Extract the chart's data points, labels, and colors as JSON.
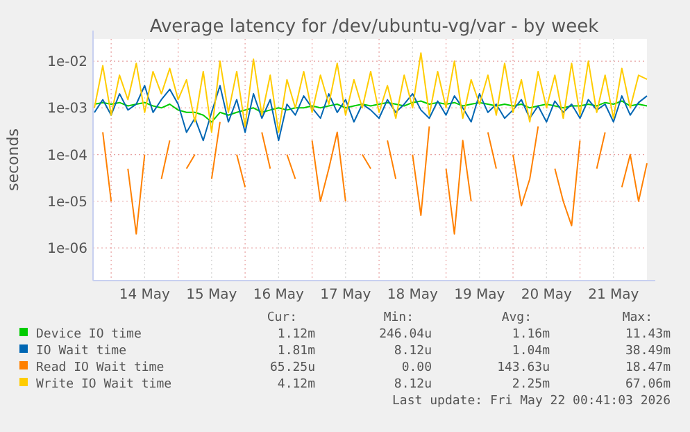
{
  "chart_data": {
    "type": "line",
    "title": "Average latency for /dev/ubuntu-vg/var - by week",
    "ylabel": "seconds",
    "log": "y",
    "grid": true,
    "legend": "bottom",
    "marker": "none",
    "line_style": "solid",
    "xlim": [
      "2026-05-13T17:30",
      "2026-05-22T00:00"
    ],
    "xticks": [
      {
        "value": "2026-05-14T00:00",
        "label": null
      },
      {
        "value": "2026-05-14T12:00",
        "label": "14 May"
      },
      {
        "value": "2026-05-15T00:00",
        "label": null
      },
      {
        "value": "2026-05-15T12:00",
        "label": "15 May"
      },
      {
        "value": "2026-05-16T00:00",
        "label": null
      },
      {
        "value": "2026-05-16T12:00",
        "label": "16 May"
      },
      {
        "value": "2026-05-17T00:00",
        "label": null
      },
      {
        "value": "2026-05-17T12:00",
        "label": "17 May"
      },
      {
        "value": "2026-05-18T00:00",
        "label": null
      },
      {
        "value": "2026-05-18T12:00",
        "label": "18 May"
      },
      {
        "value": "2026-05-19T00:00",
        "label": null
      },
      {
        "value": "2026-05-19T12:00",
        "label": "19 May"
      },
      {
        "value": "2026-05-20T00:00",
        "label": null
      },
      {
        "value": "2026-05-20T12:00",
        "label": "20 May"
      },
      {
        "value": "2026-05-21T00:00",
        "label": null
      },
      {
        "value": "2026-05-21T12:00",
        "label": "21 May"
      }
    ],
    "ylim": [
      2e-07,
      0.03
    ],
    "yticks": [
      {
        "value": 1e-06,
        "label": "1e-06"
      },
      {
        "value": 1e-05,
        "label": "1e-05"
      },
      {
        "value": 0.0001,
        "label": "1e-04"
      },
      {
        "value": 0.001,
        "label": "1e-03"
      },
      {
        "value": 0.01,
        "label": "1e-02"
      }
    ],
    "x": [
      "2026-05-13T18:00",
      "2026-05-13T21:00",
      "2026-05-14T00:00",
      "2026-05-14T03:00",
      "2026-05-14T06:00",
      "2026-05-14T09:00",
      "2026-05-14T12:00",
      "2026-05-14T15:00",
      "2026-05-14T18:00",
      "2026-05-14T21:00",
      "2026-05-15T00:00",
      "2026-05-15T03:00",
      "2026-05-15T06:00",
      "2026-05-15T09:00",
      "2026-05-15T12:00",
      "2026-05-15T15:00",
      "2026-05-15T18:00",
      "2026-05-15T21:00",
      "2026-05-16T00:00",
      "2026-05-16T03:00",
      "2026-05-16T06:00",
      "2026-05-16T09:00",
      "2026-05-16T12:00",
      "2026-05-16T15:00",
      "2026-05-16T18:00",
      "2026-05-16T21:00",
      "2026-05-17T00:00",
      "2026-05-17T03:00",
      "2026-05-17T06:00",
      "2026-05-17T09:00",
      "2026-05-17T12:00",
      "2026-05-17T15:00",
      "2026-05-17T18:00",
      "2026-05-17T21:00",
      "2026-05-18T00:00",
      "2026-05-18T03:00",
      "2026-05-18T06:00",
      "2026-05-18T09:00",
      "2026-05-18T12:00",
      "2026-05-18T15:00",
      "2026-05-18T18:00",
      "2026-05-18T21:00",
      "2026-05-19T00:00",
      "2026-05-19T03:00",
      "2026-05-19T06:00",
      "2026-05-19T09:00",
      "2026-05-19T12:00",
      "2026-05-19T15:00",
      "2026-05-19T18:00",
      "2026-05-19T21:00",
      "2026-05-20T00:00",
      "2026-05-20T03:00",
      "2026-05-20T06:00",
      "2026-05-20T09:00",
      "2026-05-20T12:00",
      "2026-05-20T15:00",
      "2026-05-20T18:00",
      "2026-05-20T21:00",
      "2026-05-21T00:00",
      "2026-05-21T03:00",
      "2026-05-21T06:00",
      "2026-05-21T09:00",
      "2026-05-21T12:00",
      "2026-05-21T15:00",
      "2026-05-21T18:00",
      "2026-05-21T21:00",
      "2026-05-22T00:00"
    ],
    "series": [
      {
        "name": "Device IO time",
        "color": "#00cc00",
        "values": [
          0.0012,
          0.0013,
          0.0012,
          0.0013,
          0.0011,
          0.0012,
          0.0013,
          0.0011,
          0.001,
          0.0012,
          0.0009,
          0.0008,
          0.0008,
          0.0007,
          0.0005,
          0.0008,
          0.0007,
          0.0008,
          0.0009,
          0.001,
          0.0008,
          0.0009,
          0.001,
          0.0009,
          0.001,
          0.001,
          0.0011,
          0.001,
          0.0011,
          0.0012,
          0.001,
          0.0011,
          0.0012,
          0.0011,
          0.0012,
          0.0013,
          0.0012,
          0.0011,
          0.0013,
          0.0014,
          0.0012,
          0.0013,
          0.0012,
          0.0013,
          0.0011,
          0.0012,
          0.0013,
          0.0012,
          0.0011,
          0.0012,
          0.0011,
          0.0012,
          0.001,
          0.0011,
          0.0012,
          0.0011,
          0.001,
          0.0011,
          0.0011,
          0.0012,
          0.0011,
          0.0013,
          0.0012,
          0.0014,
          0.0011,
          0.0012,
          0.0011
        ]
      },
      {
        "name": "IO Wait time",
        "color": "#0066b3",
        "values": [
          0.0008,
          0.0015,
          0.0007,
          0.002,
          0.0009,
          0.0012,
          0.003,
          0.0008,
          0.0015,
          0.0025,
          0.0012,
          0.0003,
          0.0006,
          0.0002,
          0.0008,
          0.003,
          0.0005,
          0.0015,
          0.0003,
          0.002,
          0.0006,
          0.0015,
          0.0002,
          0.0012,
          0.0007,
          0.0018,
          0.001,
          0.0006,
          0.002,
          0.0008,
          0.0015,
          0.0005,
          0.0012,
          0.0009,
          0.0006,
          0.0015,
          0.0008,
          0.0012,
          0.002,
          0.0009,
          0.0006,
          0.0014,
          0.0007,
          0.0018,
          0.001,
          0.0005,
          0.002,
          0.0008,
          0.0012,
          0.0006,
          0.0009,
          0.0015,
          0.0006,
          0.0011,
          0.0005,
          0.0014,
          0.0008,
          0.0012,
          0.0006,
          0.0015,
          0.0009,
          0.0012,
          0.0005,
          0.0018,
          0.0007,
          0.0013,
          0.0018
        ]
      },
      {
        "name": "Read IO Wait time",
        "color": "#ff8000",
        "values": [
          null,
          0.0003,
          1e-05,
          null,
          5e-05,
          2e-06,
          0.0001,
          null,
          3e-05,
          0.0002,
          null,
          5e-05,
          0.0001,
          null,
          3e-05,
          0.0005,
          null,
          0.0001,
          2e-05,
          null,
          0.0003,
          5e-05,
          null,
          0.0001,
          3e-05,
          null,
          0.0002,
          1e-05,
          5e-05,
          0.0003,
          1e-05,
          null,
          0.0001,
          5e-05,
          null,
          0.0002,
          3e-05,
          null,
          0.0001,
          5e-06,
          0.0004,
          null,
          5e-05,
          2e-06,
          0.0002,
          1e-05,
          null,
          0.0003,
          5e-05,
          null,
          0.0001,
          8e-06,
          3e-05,
          0.0004,
          null,
          5e-05,
          1e-05,
          3e-06,
          0.0002,
          null,
          5e-05,
          0.0003,
          null,
          2e-05,
          0.0001,
          1e-05,
          6.5e-05
        ]
      },
      {
        "name": "Write IO Wait time",
        "color": "#ffcc00",
        "values": [
          0.001,
          0.008,
          0.0007,
          0.005,
          0.0015,
          0.009,
          0.0008,
          0.006,
          0.002,
          0.007,
          0.0015,
          0.004,
          0.0005,
          0.006,
          0.0003,
          0.01,
          0.0008,
          0.006,
          0.0004,
          0.011,
          0.0007,
          0.005,
          0.0003,
          0.004,
          0.001,
          0.006,
          0.0008,
          0.005,
          0.0012,
          0.009,
          0.0007,
          0.004,
          0.001,
          0.006,
          0.0008,
          0.003,
          0.0006,
          0.005,
          0.001,
          0.015,
          0.0007,
          0.006,
          0.001,
          0.01,
          0.0006,
          0.004,
          0.0012,
          0.005,
          0.0007,
          0.009,
          0.0008,
          0.004,
          0.0005,
          0.006,
          0.001,
          0.005,
          0.0006,
          0.009,
          0.0007,
          0.01,
          0.0008,
          0.005,
          0.0006,
          0.007,
          0.001,
          0.005,
          0.0041
        ]
      }
    ],
    "annotations": [
      "Cur:",
      "Min:",
      "Avg:",
      "Max:",
      "1.12m",
      "246.04u",
      "1.16m",
      "11.43m",
      "1.81m",
      "8.12u",
      "1.04m",
      "38.49m",
      "65.25u",
      "0.00",
      "143.63u",
      "18.47m",
      "4.12m",
      "8.12u",
      "2.25m",
      "67.06m",
      "Last update: Fri May 22 00:41:03 2026"
    ]
  }
}
